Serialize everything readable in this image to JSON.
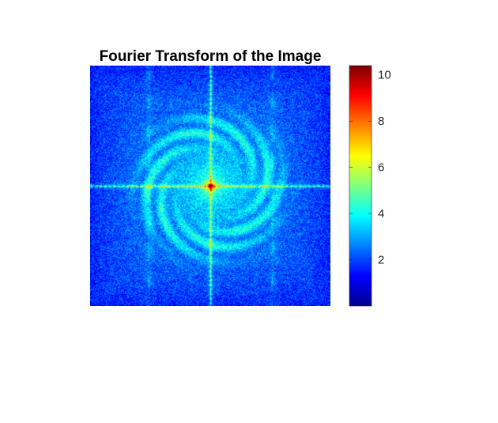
{
  "figure": {
    "background": "#ffffff"
  },
  "chart_data": {
    "type": "heatmap",
    "title": "Fourier Transform of the Image",
    "xlabel": "",
    "ylabel": "",
    "colormap": "jet",
    "colorbar": {
      "location": "right",
      "clim": [
        0,
        10.4
      ],
      "ticks": [
        2,
        4,
        6,
        8,
        10
      ],
      "tick_labels": [
        "2",
        "4",
        "6",
        "8",
        "10"
      ]
    },
    "axes_visible": false,
    "grid": false,
    "description_values": {
      "peak_value": 10.4,
      "background_level": 2.0
    }
  }
}
